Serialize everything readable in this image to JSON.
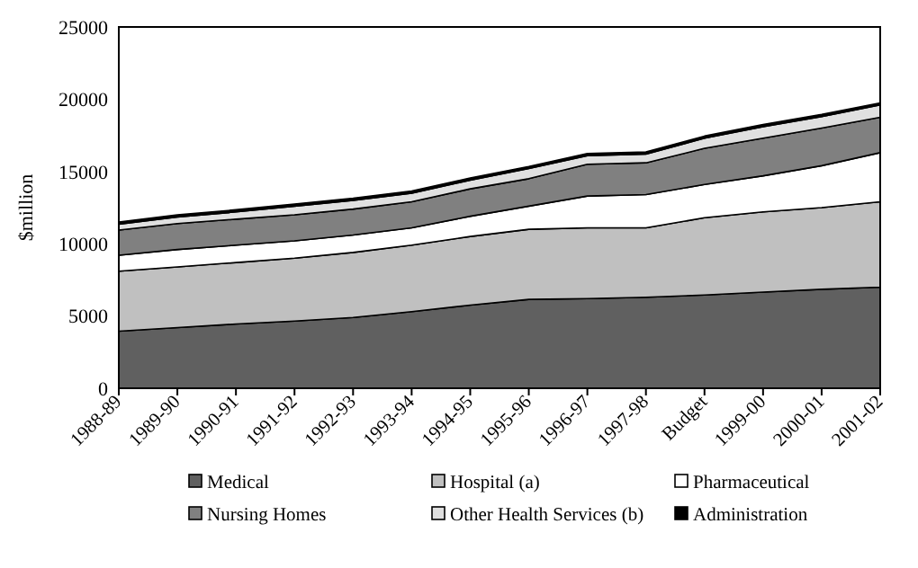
{
  "chart_data": {
    "type": "area",
    "stacked": true,
    "ylabel": "$million",
    "categories": [
      "1988-89",
      "1989-90",
      "1990-91",
      "1991-92",
      "1992-93",
      "1993-94",
      "1994-95",
      "1995-96",
      "1996-97",
      "1997-98",
      "Budget",
      "1999-00",
      "2000-01",
      "2001-02"
    ],
    "series": [
      {
        "name": "Medical",
        "color": "#606060",
        "values": [
          3950,
          4200,
          4450,
          4650,
          4900,
          5300,
          5750,
          6150,
          6200,
          6300,
          6450,
          6650,
          6850,
          7000
        ]
      },
      {
        "name": "Hospital (a)",
        "color": "#c0c0c0",
        "values": [
          4150,
          4200,
          4250,
          4350,
          4500,
          4600,
          4750,
          4850,
          4900,
          4800,
          5350,
          5550,
          5650,
          5900
        ]
      },
      {
        "name": "Pharmaceutical",
        "color": "#ffffff",
        "values": [
          1100,
          1200,
          1200,
          1200,
          1200,
          1200,
          1400,
          1600,
          2200,
          2300,
          2300,
          2500,
          2900,
          3400
        ]
      },
      {
        "name": "Nursing Homes",
        "color": "#808080",
        "values": [
          1750,
          1800,
          1800,
          1800,
          1800,
          1800,
          1900,
          1900,
          2200,
          2200,
          2500,
          2600,
          2600,
          2450
        ]
      },
      {
        "name": "Other Health Services (b)",
        "color": "#e0e0e0",
        "values": [
          400,
          450,
          500,
          600,
          600,
          600,
          600,
          700,
          600,
          600,
          700,
          800,
          800,
          850
        ]
      },
      {
        "name": "Administration",
        "color": "#000000",
        "values": [
          150,
          150,
          150,
          150,
          150,
          150,
          150,
          150,
          150,
          150,
          150,
          150,
          150,
          150
        ]
      }
    ],
    "ylim": [
      0,
      25000
    ],
    "yticks": [
      0,
      5000,
      10000,
      15000,
      20000,
      25000
    ],
    "grid": false,
    "legend": "bottom"
  }
}
